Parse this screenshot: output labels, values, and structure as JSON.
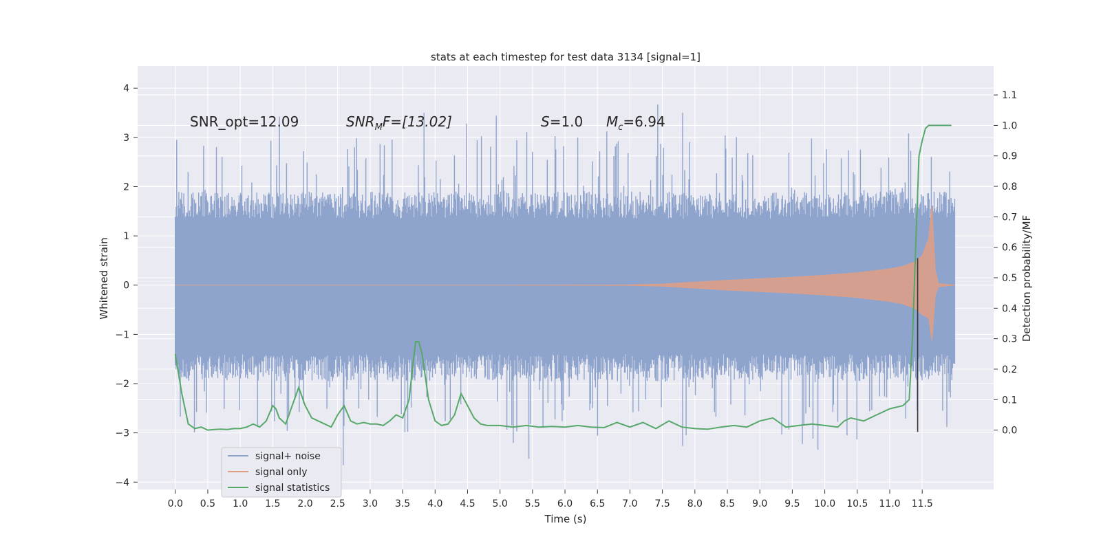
{
  "chart_data": {
    "type": "line",
    "title": "stats at each timestep for test data 3134 [signal=1]",
    "xlabel": "Time (s)",
    "ylabel_left": "Whitened strain",
    "ylabel_right": "Detection probability/MF",
    "xlim": [
      -0.58,
      12.6
    ],
    "ylim_left": [
      -4.15,
      4.45
    ],
    "ylim_right": [
      -0.195,
      1.195
    ],
    "x_ticks": [
      "0.0",
      "0.5",
      "1.0",
      "1.5",
      "2.0",
      "2.5",
      "3.0",
      "3.5",
      "4.0",
      "4.5",
      "5.0",
      "5.5",
      "6.0",
      "6.5",
      "7.0",
      "7.5",
      "8.0",
      "8.5",
      "9.0",
      "9.5",
      "10.0",
      "10.5",
      "11.0",
      "11.5"
    ],
    "y_ticks_left": [
      "4",
      "3",
      "2",
      "1",
      "0",
      "−1",
      "−2",
      "−3",
      "−4"
    ],
    "y_ticks_right": [
      "1.1",
      "1.0",
      "0.9",
      "0.8",
      "0.7",
      "0.6",
      "0.5",
      "0.4",
      "0.3",
      "0.2",
      "0.1",
      "0.0"
    ],
    "grid": true,
    "legend_position": "lower-left",
    "series": [
      {
        "name": "signal+ noise",
        "color": "#8fa4cc",
        "time_range": [
          0.0,
          12.0
        ],
        "typical_range": [
          -1.4,
          1.35
        ],
        "extreme_range": [
          -3.85,
          4.1
        ]
      },
      {
        "name": "signal only",
        "color": "#e09f84",
        "x": [
          0.0,
          5.0,
          7.0,
          7.5,
          8.0,
          8.5,
          9.0,
          9.5,
          10.0,
          10.5,
          11.0,
          11.2,
          11.4,
          11.5,
          11.6,
          11.65,
          11.7,
          11.75,
          12.0
        ],
        "envelope": [
          0.0,
          0.0,
          0.005,
          0.02,
          0.06,
          0.1,
          0.13,
          0.16,
          0.2,
          0.25,
          0.33,
          0.38,
          0.48,
          0.6,
          0.95,
          1.6,
          0.3,
          0.03,
          0.0
        ]
      },
      {
        "name": "signal statistics",
        "color": "#55a868",
        "x": [
          0.0,
          0.1,
          0.2,
          0.3,
          0.4,
          0.5,
          0.6,
          0.7,
          0.8,
          0.9,
          1.0,
          1.1,
          1.2,
          1.3,
          1.4,
          1.5,
          1.55,
          1.6,
          1.7,
          1.8,
          1.9,
          2.0,
          2.1,
          2.2,
          2.3,
          2.4,
          2.5,
          2.6,
          2.7,
          2.8,
          2.9,
          3.0,
          3.1,
          3.2,
          3.3,
          3.4,
          3.5,
          3.6,
          3.65,
          3.7,
          3.75,
          3.8,
          3.9,
          4.0,
          4.1,
          4.2,
          4.3,
          4.4,
          4.5,
          4.6,
          4.7,
          4.8,
          5.0,
          5.2,
          5.4,
          5.6,
          5.8,
          6.0,
          6.2,
          6.4,
          6.6,
          6.8,
          7.0,
          7.2,
          7.4,
          7.6,
          7.8,
          8.0,
          8.2,
          8.4,
          8.6,
          8.8,
          9.0,
          9.2,
          9.4,
          9.6,
          9.8,
          10.0,
          10.2,
          10.3,
          10.4,
          10.6,
          10.8,
          11.0,
          11.2,
          11.3,
          11.35,
          11.4,
          11.45,
          11.5,
          11.55,
          11.6,
          11.7,
          11.8,
          11.95
        ],
        "y": [
          0.25,
          0.12,
          0.02,
          0.005,
          0.01,
          0.0,
          0.002,
          0.003,
          0.002,
          0.005,
          0.005,
          0.01,
          0.02,
          0.01,
          0.03,
          0.08,
          0.07,
          0.04,
          0.02,
          0.08,
          0.14,
          0.08,
          0.04,
          0.03,
          0.02,
          0.01,
          0.05,
          0.08,
          0.03,
          0.02,
          0.025,
          0.02,
          0.02,
          0.015,
          0.03,
          0.05,
          0.04,
          0.1,
          0.2,
          0.29,
          0.29,
          0.25,
          0.1,
          0.03,
          0.015,
          0.02,
          0.05,
          0.12,
          0.08,
          0.04,
          0.02,
          0.015,
          0.015,
          0.01,
          0.015,
          0.01,
          0.012,
          0.01,
          0.015,
          0.01,
          0.008,
          0.025,
          0.01,
          0.025,
          0.005,
          0.03,
          0.01,
          0.005,
          0.003,
          0.01,
          0.015,
          0.01,
          0.03,
          0.04,
          0.01,
          0.015,
          0.02,
          0.015,
          0.01,
          0.03,
          0.04,
          0.03,
          0.05,
          0.07,
          0.08,
          0.1,
          0.3,
          0.6,
          0.9,
          0.95,
          0.99,
          1.0,
          1.0,
          1.0,
          1.0
        ]
      }
    ],
    "annotations": {
      "snr_opt": "SNR_opt=12.09",
      "snr_mf_base": "SNR",
      "snr_mf_sub": "M",
      "snr_mf_rest": "F=[13.02]",
      "s_base": "S",
      "s_rest": "=1.0",
      "mc_base": "M",
      "mc_sub": "c",
      "mc_rest": "=6.94"
    },
    "vline_x": 11.43
  }
}
